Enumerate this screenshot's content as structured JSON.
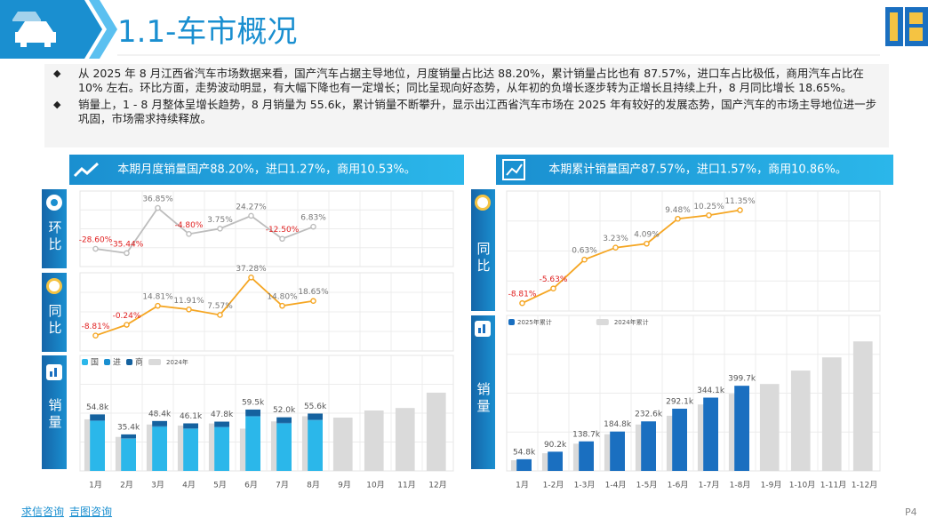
{
  "header": {
    "title": "1.1-车市概况"
  },
  "bullets": [
    "从 2025 年 8 月江西省汽车市场数据来看，国产汽车占据主导地位，月度销量占比达 88.20%，累计销量占比也有 87.57%，进口车占比极低，商用汽车占比在 10% 左右。环比方面，走势波动明显，有大幅下降也有一定增长；同比呈现向好态势，从年初的负增长逐步转为正增长且持续上升，8 月同比增长 18.65%。",
    "销量上，1 - 8 月整体呈增长趋势，8 月销量为 55.6k，累计销量不断攀升，显示出江西省汽车市场在 2025 年有较好的发展态势，国产汽车的市场主导地位进一步巩固，市场需求持续释放。"
  ],
  "panels": [
    {
      "banner": "本期月度销量国产88.20%，进口1.27%，商用10.53%。",
      "side_labels": [
        "环比",
        "同比",
        "销量"
      ]
    },
    {
      "banner": "本期累计销量国产87.57%，进口1.57%，商用10.86%。",
      "side_labels": [
        "同比",
        "销量"
      ]
    }
  ],
  "chart_data": [
    {
      "type": "line",
      "color": "#bdbdbd",
      "ylim": [
        -57,
        64
      ],
      "values": [
        -28.6,
        -35.44,
        36.85,
        -4.8,
        3.75,
        24.27,
        -12.5,
        6.83,
        null,
        null,
        null,
        null
      ],
      "value_labels": [
        "-28.60%",
        "-35.44%",
        "36.85%",
        "-4.80%",
        "3.75%",
        "24.27%",
        "-12.50%",
        "6.83%",
        null,
        null,
        null,
        null
      ]
    },
    {
      "type": "line",
      "color": "#f5a623",
      "ylim": [
        -21,
        41
      ],
      "values": [
        -8.81,
        -0.24,
        14.81,
        11.91,
        7.57,
        37.28,
        14.8,
        18.65,
        null,
        null,
        null,
        null
      ],
      "value_labels": [
        "-8.81%",
        "-0.24%",
        "14.81%",
        "11.91%",
        "7.57%",
        "37.28%",
        "14.80%",
        "18.65%",
        null,
        null,
        null,
        null
      ]
    },
    {
      "type": "bar",
      "ylim": [
        0,
        112
      ],
      "categories": [
        "1月",
        "2月",
        "3月",
        "4月",
        "5月",
        "6月",
        "7月",
        "8月",
        "9月",
        "10月",
        "11月",
        "12月"
      ],
      "series": [
        {
          "name": "国",
          "color": "#2bb7ea",
          "values": [
            48.3,
            31.2,
            42.7,
            40.7,
            42.2,
            52.5,
            45.9,
            49.0,
            null,
            null,
            null,
            null
          ]
        },
        {
          "name": "进",
          "color": "#1a8fd0",
          "values": [
            0.7,
            0.4,
            0.6,
            0.6,
            0.6,
            0.8,
            0.7,
            0.7,
            null,
            null,
            null,
            null
          ]
        },
        {
          "name": "商",
          "color": "#15629f",
          "values": [
            5.8,
            3.8,
            5.1,
            4.8,
            5.0,
            6.2,
            5.4,
            5.9,
            null,
            null,
            null,
            null
          ]
        },
        {
          "name": "2024年",
          "color": "#dadada",
          "values": [
            50,
            33,
            45,
            44,
            46,
            41,
            48,
            53,
            51.7,
            58.6,
            61,
            75.9
          ]
        }
      ],
      "totals": [
        54.8,
        35.4,
        48.4,
        46.1,
        47.8,
        59.5,
        52.0,
        55.6,
        null,
        null,
        null,
        null
      ],
      "total_labels": [
        "54.8k",
        "35.4k",
        "48.4k",
        "46.1k",
        "47.8k",
        "59.5k",
        "52.0k",
        "55.6k",
        null,
        null,
        null,
        null
      ]
    },
    {
      "type": "line",
      "color": "#f5a623",
      "ylim": [
        -10.5,
        15.5
      ],
      "values": [
        -8.81,
        -5.63,
        0.63,
        3.23,
        4.09,
        9.48,
        10.25,
        11.35,
        null,
        null,
        null,
        null
      ],
      "value_labels": [
        "-8.81%",
        "-5.63%",
        "0.63%",
        "3.23%",
        "4.09%",
        "9.48%",
        "10.25%",
        "11.35%",
        null,
        null,
        null,
        null
      ]
    },
    {
      "type": "bar",
      "ylim": [
        0,
        730
      ],
      "categories": [
        "1月",
        "1-2月",
        "1-3月",
        "1-4月",
        "1-5月",
        "1-6月",
        "1-7月",
        "1-8月",
        "1-9月",
        "1-10月",
        "1-11月",
        "1-12月"
      ],
      "series": [
        {
          "name": "2025年累计",
          "color": "#1a6fc0",
          "values": [
            54.8,
            90.2,
            138.7,
            184.8,
            232.6,
            292.1,
            344.1,
            399.7,
            null,
            null,
            null,
            null
          ],
          "value_labels": [
            "54.8k",
            "90.2k",
            "138.7k",
            "184.8k",
            "232.6k",
            "292.1k",
            "344.1k",
            "399.7k",
            null,
            null,
            null,
            null
          ]
        },
        {
          "name": "2024年累计",
          "color": "#dadada",
          "values": [
            50,
            83,
            128,
            172,
            218,
            259,
            312,
            362,
            408,
            471,
            533,
            608
          ]
        }
      ]
    }
  ],
  "footer": {
    "links": [
      "求信咨询",
      "吉图咨询"
    ],
    "page": "P4"
  }
}
